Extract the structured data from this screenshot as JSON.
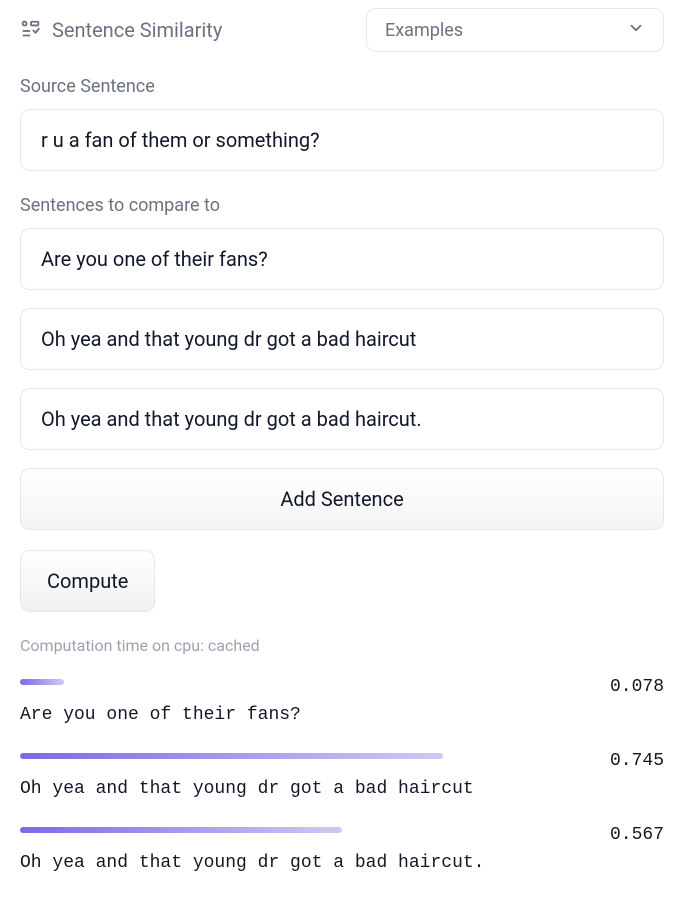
{
  "header": {
    "title": "Sentence Similarity",
    "dropdown_label": "Examples"
  },
  "source": {
    "label": "Source Sentence",
    "value": "r u a fan of them or something?"
  },
  "compare": {
    "label": "Sentences to compare to",
    "items": [
      {
        "value": "Are you one of their fans?"
      },
      {
        "value": "Oh yea and that young dr got a bad haircut"
      },
      {
        "value": "Oh yea and that young dr got a bad haircut."
      }
    ],
    "add_label": "Add Sentence"
  },
  "compute_label": "Compute",
  "computation_time": "Computation time on cpu: cached",
  "results": {
    "bar_color_start": "#7c6ae6",
    "bar_color_end": "#cfc8f5",
    "items": [
      {
        "text": "Are you one of their fans?",
        "score": "0.078",
        "fill_pct": 7.8
      },
      {
        "text": "Oh yea and that young dr got a bad haircut",
        "score": "0.745",
        "fill_pct": 74.5
      },
      {
        "text": "Oh yea and that young dr got a bad haircut.",
        "score": "0.567",
        "fill_pct": 56.7
      }
    ]
  }
}
